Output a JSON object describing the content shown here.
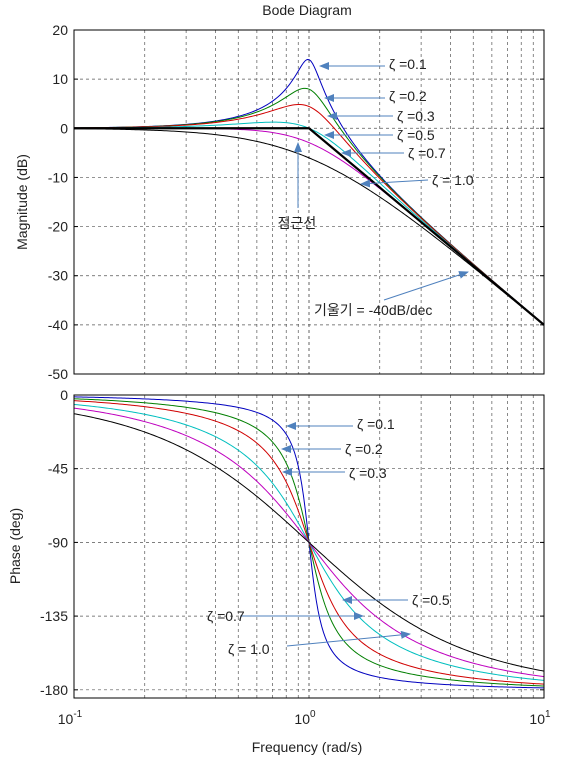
{
  "chart_data": [
    {
      "type": "line",
      "title": "Bode Diagram",
      "ylabel": "Magnitude (dB)",
      "xscale": "log",
      "xlim": [
        0.1,
        10
      ],
      "ylim": [
        -50,
        20
      ],
      "yticks": [
        "20",
        "10",
        "0",
        "-10",
        "-20",
        "-30",
        "-40",
        "-50"
      ],
      "grid": true,
      "series": [
        {
          "zeta": 0.1,
          "color": "#0000bf"
        },
        {
          "zeta": 0.2,
          "color": "#007f00"
        },
        {
          "zeta": 0.3,
          "color": "#d00000"
        },
        {
          "zeta": 0.5,
          "color": "#00bfbf"
        },
        {
          "zeta": 0.7,
          "color": "#bf00bf"
        },
        {
          "zeta": 1.0,
          "color": "#000000"
        }
      ],
      "asymptote": {
        "break_frequency": 1.0,
        "slope_db_per_decade": -40,
        "label": "점근선"
      },
      "annotations": [
        {
          "text": "ζ =0.1"
        },
        {
          "text": "ζ =0.2"
        },
        {
          "text": "ζ =0.3"
        },
        {
          "text": "ζ =0.5"
        },
        {
          "text": "ζ =0.7"
        },
        {
          "text": "ζ = 1.0"
        },
        {
          "text": "점근선"
        },
        {
          "text": "기울기 = -40dB/dec"
        }
      ]
    },
    {
      "type": "line",
      "xlabel": "Frequency  (rad/s)",
      "ylabel": "Phase (deg)",
      "xscale": "log",
      "xlim": [
        0.1,
        10
      ],
      "ylim": [
        -185,
        0
      ],
      "yticks": [
        "0",
        "-45",
        "-90",
        "-135",
        "-180"
      ],
      "xticks": [
        {
          "base": "10",
          "exp": "-1"
        },
        {
          "base": "10",
          "exp": "0"
        },
        {
          "base": "10",
          "exp": "1"
        }
      ],
      "grid": true,
      "annotations": [
        {
          "text": "ζ =0.1"
        },
        {
          "text": "ζ =0.2"
        },
        {
          "text": "ζ =0.3"
        },
        {
          "text": "ζ =0.5"
        },
        {
          "text": "ζ =0.7"
        },
        {
          "text": "ζ = 1.0"
        }
      ]
    }
  ],
  "colors": {
    "annotation_arrow": "#4f81bd",
    "grid": "#555555"
  }
}
